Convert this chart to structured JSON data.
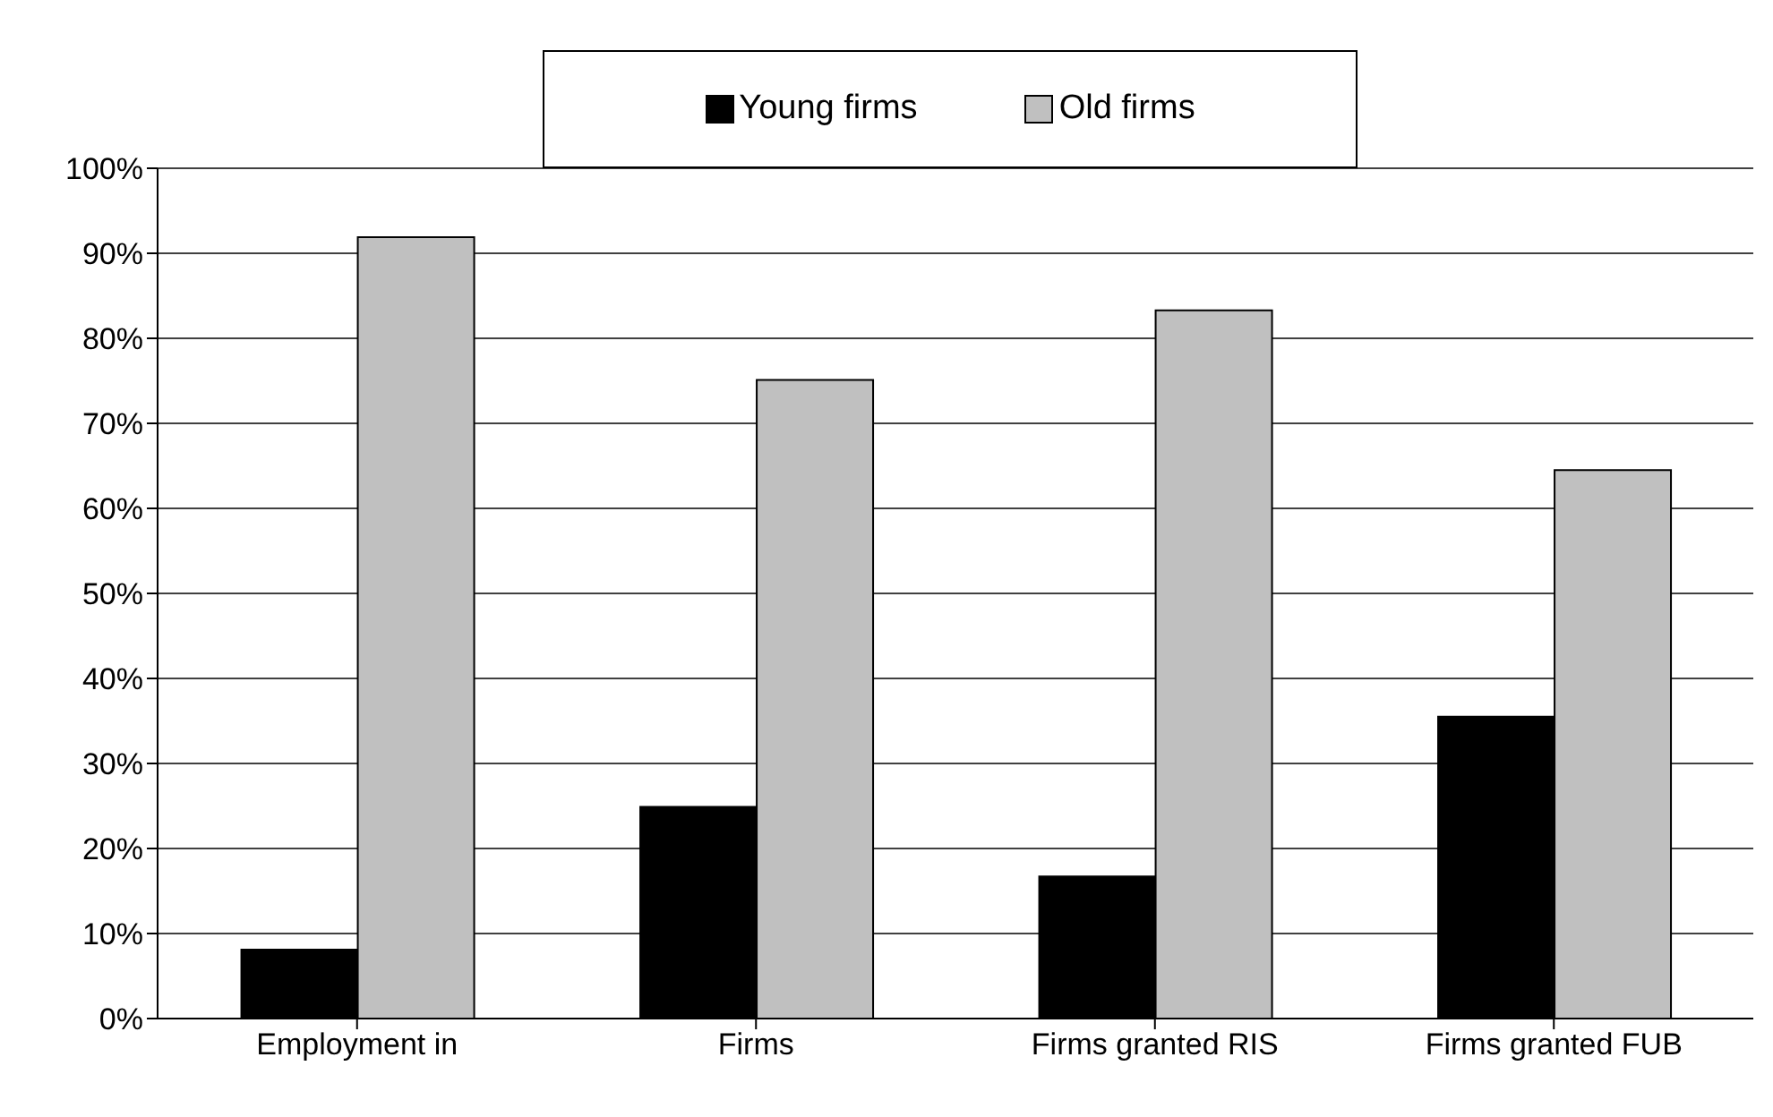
{
  "chart_data": {
    "type": "bar",
    "categories": [
      "Employment in",
      "Firms",
      "Firms granted RIS",
      "Firms granted FUB"
    ],
    "series": [
      {
        "name": "Young firms",
        "color": "#000000",
        "values": [
          8.1,
          24.9,
          16.7,
          35.5
        ]
      },
      {
        "name": "Old firms",
        "color": "#c0c0c0",
        "values": [
          91.9,
          75.1,
          83.3,
          64.5
        ]
      }
    ],
    "ylim": [
      0,
      100
    ],
    "yticks": [
      {
        "value": 0,
        "label": "0%"
      },
      {
        "value": 10,
        "label": "10%"
      },
      {
        "value": 20,
        "label": "20%"
      },
      {
        "value": 30,
        "label": "30%"
      },
      {
        "value": 40,
        "label": "40%"
      },
      {
        "value": 50,
        "label": "50%"
      },
      {
        "value": 60,
        "label": "60%"
      },
      {
        "value": 70,
        "label": "70%"
      },
      {
        "value": 80,
        "label": "80%"
      },
      {
        "value": 90,
        "label": "90%"
      },
      {
        "value": 100,
        "label": "100%"
      }
    ],
    "grid": "y",
    "legend": "top"
  }
}
